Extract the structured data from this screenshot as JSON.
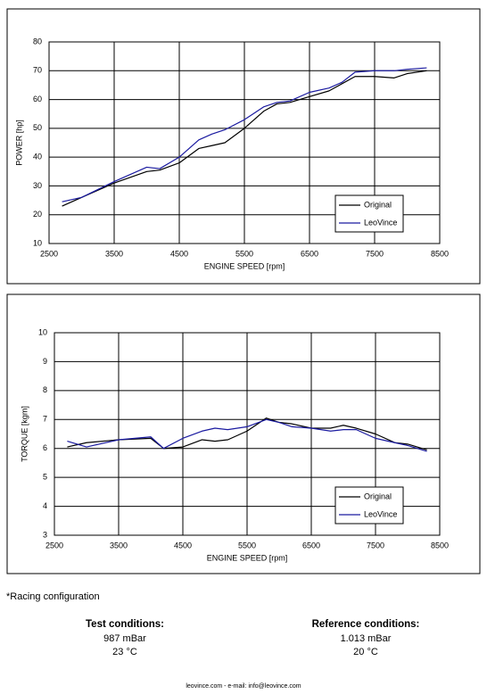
{
  "chart_data": [
    {
      "type": "line",
      "x_label": "ENGINE SPEED [rpm]",
      "y_label": "POWER [hp]",
      "xlim": [
        2500,
        8500
      ],
      "xticks": [
        2500,
        3500,
        4500,
        5500,
        6500,
        7500,
        8500
      ],
      "ylim": [
        10,
        80
      ],
      "yticks": [
        10,
        20,
        30,
        40,
        50,
        60,
        70,
        80
      ],
      "grid": true,
      "legend": "lower right",
      "x": [
        2700,
        3000,
        3500,
        4000,
        4200,
        4500,
        4800,
        5000,
        5200,
        5500,
        5800,
        6000,
        6200,
        6500,
        6800,
        7000,
        7200,
        7500,
        7800,
        8000,
        8300
      ],
      "series": [
        {
          "name": "Original",
          "color": "#000000",
          "values": [
            23,
            26,
            31,
            35,
            35.5,
            38,
            43,
            44,
            45,
            50,
            56,
            58.5,
            59,
            61,
            63,
            65.5,
            68,
            68,
            67.5,
            69,
            70
          ]
        },
        {
          "name": "LeoVince",
          "color": "#1a1aa0",
          "values": [
            24.5,
            26,
            31.5,
            36.5,
            36,
            40,
            46,
            48,
            49.5,
            53,
            57.5,
            59,
            59.5,
            62.5,
            64,
            66,
            69.5,
            70,
            70,
            70.5,
            71
          ]
        }
      ]
    },
    {
      "type": "line",
      "x_label": "ENGINE SPEED [rpm]",
      "y_label": "TORQUE [kgm]",
      "xlim": [
        2500,
        8500
      ],
      "xticks": [
        2500,
        3500,
        4500,
        5500,
        6500,
        7500,
        8500
      ],
      "ylim": [
        3,
        10
      ],
      "yticks": [
        3,
        4,
        5,
        6,
        7,
        8,
        9,
        10
      ],
      "grid": true,
      "legend": "lower right",
      "x": [
        2700,
        3000,
        3500,
        4000,
        4200,
        4500,
        4800,
        5000,
        5200,
        5500,
        5800,
        6000,
        6200,
        6500,
        6800,
        7000,
        7200,
        7500,
        7800,
        8000,
        8300
      ],
      "series": [
        {
          "name": "Original",
          "color": "#000000",
          "values": [
            6.05,
            6.2,
            6.3,
            6.35,
            6.0,
            6.05,
            6.3,
            6.25,
            6.3,
            6.6,
            7.05,
            6.9,
            6.85,
            6.7,
            6.7,
            6.8,
            6.7,
            6.5,
            6.2,
            6.15,
            5.95
          ]
        },
        {
          "name": "LeoVince",
          "color": "#1a1aa0",
          "values": [
            6.25,
            6.05,
            6.3,
            6.4,
            6.0,
            6.35,
            6.6,
            6.7,
            6.65,
            6.75,
            7.0,
            6.9,
            6.75,
            6.7,
            6.6,
            6.65,
            6.65,
            6.35,
            6.2,
            6.1,
            5.9
          ]
        }
      ]
    }
  ],
  "footnote": "*Racing configuration",
  "test_conditions": {
    "title": "Test conditions:",
    "pressure": "987 mBar",
    "temperature": "23 °C"
  },
  "reference_conditions": {
    "title": "Reference conditions:",
    "pressure": "1.013 mBar",
    "temperature": "20 °C"
  },
  "footer": "leovince.com - e-mail: info@leovince.com"
}
